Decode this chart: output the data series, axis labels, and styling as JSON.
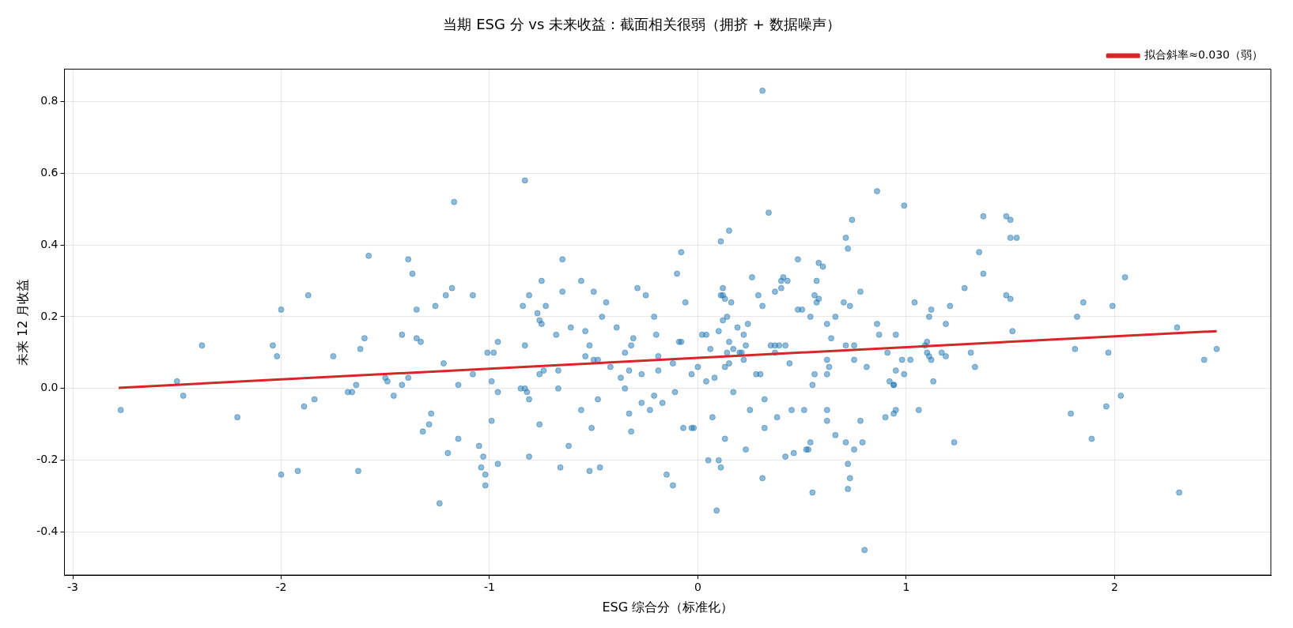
{
  "chart_data": {
    "type": "scatter",
    "title": "当期 ESG 分 vs 未来收益：截面相关很弱（拥挤 + 数据噪声）",
    "xlabel": "ESG 综合分（标准化）",
    "ylabel": "未来 12 月收益",
    "xlim": [
      -3.04,
      2.75
    ],
    "ylim": [
      -0.52,
      0.89
    ],
    "xticks": [
      -3,
      -2,
      -1,
      0,
      1,
      2
    ],
    "yticks": [
      -0.4,
      -0.2,
      {
        "value": 0,
        "label": "0.0"
      },
      0.2,
      0.4,
      0.6,
      0.8
    ],
    "grid": true,
    "legend": "top right",
    "series": [
      {
        "marker": "circle",
        "color": "#1f77b4",
        "x": [
          -2.77,
          -2.5,
          -2.47,
          -2.38,
          -2.21,
          -2.04,
          -2.02,
          -2,
          -2,
          -1.92,
          -1.89,
          -1.87,
          -1.84,
          -1.75,
          -1.68,
          -1.66,
          -1.64,
          -1.63,
          -1.62,
          -1.6,
          -1.58,
          -1.5,
          -1.49,
          -1.46,
          -1.42,
          -1.42,
          -1.39,
          -1.39,
          -1.37,
          -1.35,
          -1.35,
          -1.33,
          -1.32,
          -1.29,
          -1.28,
          -1.26,
          -1.24,
          -1.22,
          -1.21,
          -1.2,
          -1.18,
          -1.17,
          -1.15,
          -1.15,
          -1.08,
          -1.08,
          -1.05,
          -1.04,
          -1.03,
          -1.02,
          -1.02,
          -1.01,
          -0.99,
          -0.99,
          -0.98,
          -0.96,
          -0.96,
          -0.96,
          -0.83,
          -0.85,
          -0.83,
          -0.84,
          -0.83,
          -0.82,
          -0.81,
          -0.81,
          -0.81,
          -0.77,
          -0.76,
          -0.76,
          -0.76,
          -0.75,
          -0.75,
          -0.74,
          -0.73,
          -0.68,
          -0.67,
          -0.67,
          -0.66,
          -0.65,
          -0.65,
          -0.62,
          -0.61,
          -0.56,
          -0.56,
          -0.54,
          -0.54,
          -0.52,
          -0.52,
          -0.51,
          -0.5,
          -0.5,
          -0.48,
          -0.48,
          -0.47,
          -0.46,
          -0.44,
          -0.42,
          -0.39,
          -0.37,
          -0.35,
          -0.35,
          -0.33,
          -0.33,
          -0.32,
          -0.32,
          -0.31,
          -0.29,
          -0.27,
          -0.27,
          -0.25,
          -0.23,
          -0.21,
          -0.21,
          -0.2,
          -0.19,
          -0.19,
          -0.17,
          -0.15,
          -0.12,
          -0.12,
          -0.11,
          -0.1,
          -0.09,
          -0.08,
          -0.08,
          -0.07,
          -0.06,
          -0.03,
          -0.02,
          -0.03,
          0,
          0.02,
          0.04,
          0.04,
          0.05,
          0.06,
          0.07,
          0.08,
          0.09,
          0.1,
          0.1,
          0.11,
          0.11,
          0.11,
          0.12,
          0.12,
          0.12,
          0.13,
          0.13,
          0.13,
          0.14,
          0.15,
          0.14,
          0.15,
          0.15,
          0.16,
          0.17,
          0.17,
          0.19,
          0.2,
          0.21,
          0.22,
          0.22,
          0.23,
          0.23,
          0.24,
          0.25,
          0.26,
          0.28,
          0.29,
          0.3,
          0.31,
          0.31,
          0.31,
          0.32,
          0.32,
          0.34,
          0.35,
          0.37,
          0.37,
          0.37,
          0.38,
          0.39,
          0.4,
          0.4,
          0.41,
          0.42,
          0.42,
          0.43,
          0.44,
          0.45,
          0.46,
          0.48,
          0.48,
          0.5,
          0.51,
          0.52,
          0.53,
          0.54,
          0.54,
          0.55,
          0.55,
          0.56,
          0.56,
          0.57,
          0.57,
          0.58,
          0.58,
          0.6,
          0.62,
          0.62,
          0.62,
          0.62,
          0.62,
          0.63,
          0.64,
          0.66,
          0.66,
          0.7,
          0.71,
          0.71,
          0.71,
          0.72,
          0.72,
          0.72,
          0.73,
          0.73,
          0.74,
          0.75,
          0.75,
          0.75,
          0.78,
          0.78,
          0.79,
          0.8,
          0.81,
          0.86,
          0.86,
          0.87,
          0.9,
          0.91,
          0.92,
          0.94,
          0.94,
          0.94,
          0.95,
          0.95,
          0.95,
          0.98,
          0.99,
          0.99,
          1.02,
          1.04,
          1.06,
          1.09,
          1.1,
          1.1,
          1.11,
          1.12,
          1.11,
          1.12,
          1.13,
          1.17,
          1.19,
          1.19,
          1.21,
          1.23,
          1.28,
          1.31,
          1.33,
          1.35,
          1.37,
          1.37,
          1.48,
          1.5,
          1.5,
          1.53,
          1.48,
          1.5,
          1.51,
          1.79,
          1.81,
          1.82,
          1.85,
          1.89,
          1.96,
          1.97,
          1.99,
          2.03,
          2.05,
          2.3,
          2.31,
          2.43,
          2.49
        ],
        "values": [
          -0.06,
          0.02,
          -0.02,
          0.12,
          -0.08,
          0.12,
          0.09,
          0.22,
          -0.24,
          -0.23,
          -0.05,
          0.26,
          -0.03,
          0.09,
          -0.01,
          -0.01,
          0.01,
          -0.23,
          0.11,
          0.14,
          0.37,
          0.03,
          0.02,
          -0.02,
          0.01,
          0.15,
          0.36,
          0.03,
          0.32,
          0.14,
          0.22,
          0.13,
          -0.12,
          -0.1,
          -0.07,
          0.23,
          -0.32,
          0.07,
          0.26,
          -0.18,
          0.28,
          0.52,
          0.01,
          -0.14,
          0.26,
          0.04,
          -0.16,
          -0.22,
          -0.19,
          -0.24,
          -0.27,
          0.1,
          -0.09,
          0.02,
          0.1,
          0.13,
          -0.01,
          -0.21,
          0.58,
          0,
          0,
          0.23,
          0.12,
          -0.01,
          -0.03,
          0.26,
          -0.19,
          0.21,
          0.19,
          -0.1,
          0.04,
          0.18,
          0.3,
          0.05,
          0.23,
          0.15,
          0.05,
          0,
          -0.22,
          0.36,
          0.27,
          -0.16,
          0.17,
          0.3,
          -0.06,
          0.09,
          0.16,
          -0.23,
          0.12,
          -0.11,
          0.27,
          0.08,
          -0.03,
          0.08,
          -0.22,
          0.2,
          0.24,
          0.06,
          0.17,
          0.03,
          0.1,
          0,
          -0.07,
          0.05,
          -0.12,
          0.12,
          0.14,
          0.28,
          -0.04,
          0.04,
          0.26,
          -0.06,
          -0.02,
          0.2,
          0.15,
          0.09,
          0.05,
          -0.04,
          -0.24,
          0.07,
          -0.27,
          -0.01,
          0.32,
          0.13,
          0.13,
          0.38,
          -0.11,
          0.24,
          -0.11,
          -0.11,
          0.04,
          0.06,
          0.15,
          0.02,
          0.15,
          -0.2,
          0.11,
          -0.08,
          0.03,
          -0.34,
          -0.2,
          0.16,
          -0.22,
          0.41,
          0.26,
          0.26,
          0.28,
          0.19,
          -0.14,
          0.06,
          0.25,
          0.1,
          0.44,
          0.2,
          0.13,
          0.07,
          0.24,
          -0.01,
          0.11,
          0.17,
          0.1,
          0.1,
          0.15,
          0.08,
          -0.17,
          0.12,
          0.18,
          -0.06,
          0.31,
          0.04,
          0.26,
          0.04,
          0.83,
          0.23,
          -0.25,
          -0.03,
          -0.11,
          0.49,
          0.12,
          0.27,
          0.1,
          0.12,
          -0.08,
          0.12,
          0.3,
          0.28,
          0.31,
          -0.19,
          0.12,
          0.3,
          0.07,
          -0.06,
          -0.18,
          0.36,
          0.22,
          0.22,
          -0.06,
          -0.17,
          -0.17,
          0.2,
          -0.15,
          0.01,
          -0.29,
          0.04,
          0.26,
          0.24,
          0.3,
          0.25,
          0.35,
          0.34,
          0.04,
          -0.09,
          -0.06,
          0.08,
          0.18,
          0.06,
          0.14,
          0.2,
          -0.13,
          0.24,
          -0.15,
          0.42,
          0.12,
          0.39,
          -0.21,
          -0.28,
          -0.25,
          0.23,
          0.47,
          0.08,
          -0.17,
          0.12,
          -0.09,
          0.27,
          -0.15,
          -0.45,
          0.06,
          0.55,
          0.18,
          0.15,
          -0.08,
          0.1,
          0.02,
          0.01,
          0.01,
          -0.07,
          0.05,
          0.15,
          -0.06,
          0.08,
          0.51,
          0.04,
          0.08,
          0.24,
          -0.06,
          0.12,
          0.13,
          0.1,
          0.09,
          0.08,
          0.2,
          0.22,
          0.02,
          0.1,
          0.09,
          0.18,
          0.23,
          -0.15,
          0.28,
          0.1,
          0.06,
          0.38,
          0.48,
          0.32,
          0.48,
          0.47,
          0.42,
          0.42,
          0.26,
          0.25,
          0.16,
          -0.07,
          0.11,
          0.2,
          0.24,
          -0.14,
          -0.05,
          0.1,
          0.23,
          -0.02,
          0.31,
          0.17,
          -0.29,
          0.08,
          0.11
        ]
      },
      {
        "type": "line",
        "name": "拟合斜率≈0.030（弱）",
        "color": "#d62728",
        "x": [
          -2.78,
          2.49
        ],
        "values": [
          0.002,
          0.16
        ],
        "line_style": "solid",
        "marker": "none"
      }
    ]
  }
}
